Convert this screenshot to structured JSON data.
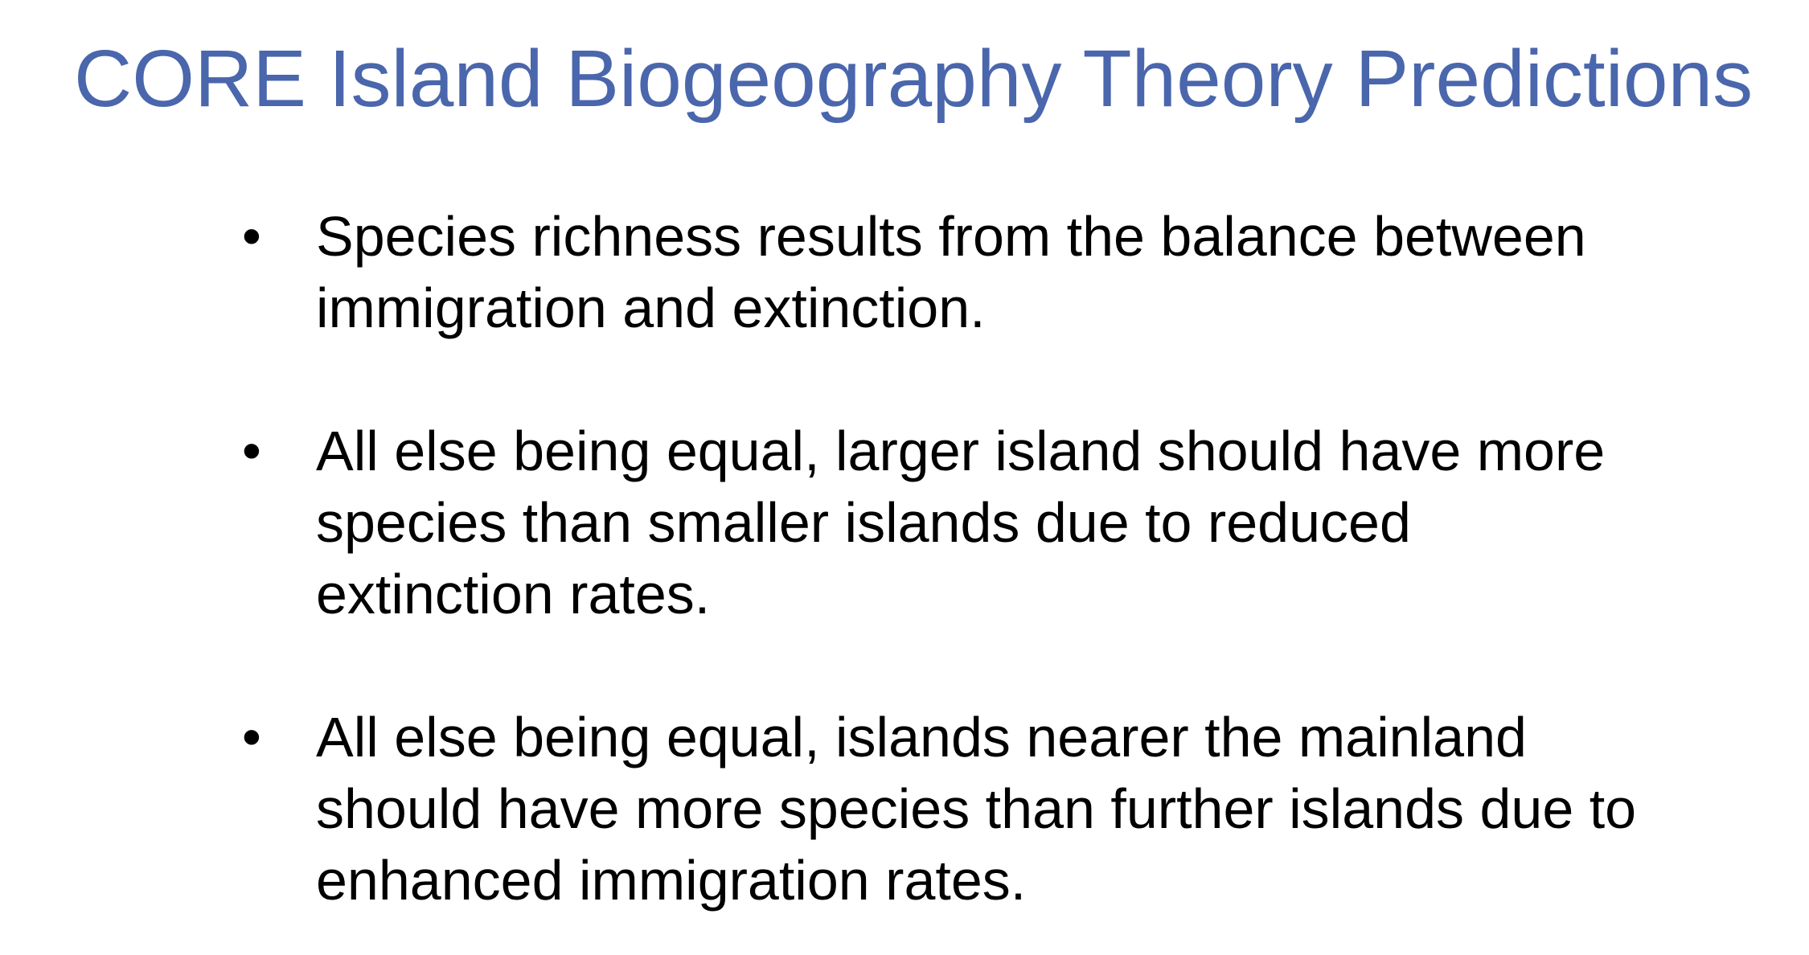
{
  "slide": {
    "title": "CORE Island Biogeography Theory Predictions",
    "title_color": "#4a66ac",
    "text_color": "#000000",
    "bullet_glyph": "•",
    "bullets": [
      {
        "line1": "Species richness results from the balance between",
        "line2": "immigration and extinction.",
        "line3": ""
      },
      {
        "line1": "All else being equal, larger island should have more",
        "line2": "species than smaller islands due to reduced",
        "line3": "extinction rates."
      },
      {
        "line1": "All else being equal, islands nearer the mainland",
        "line2": "should have more species than further islands due to",
        "line3": "enhanced immigration rates."
      }
    ]
  }
}
